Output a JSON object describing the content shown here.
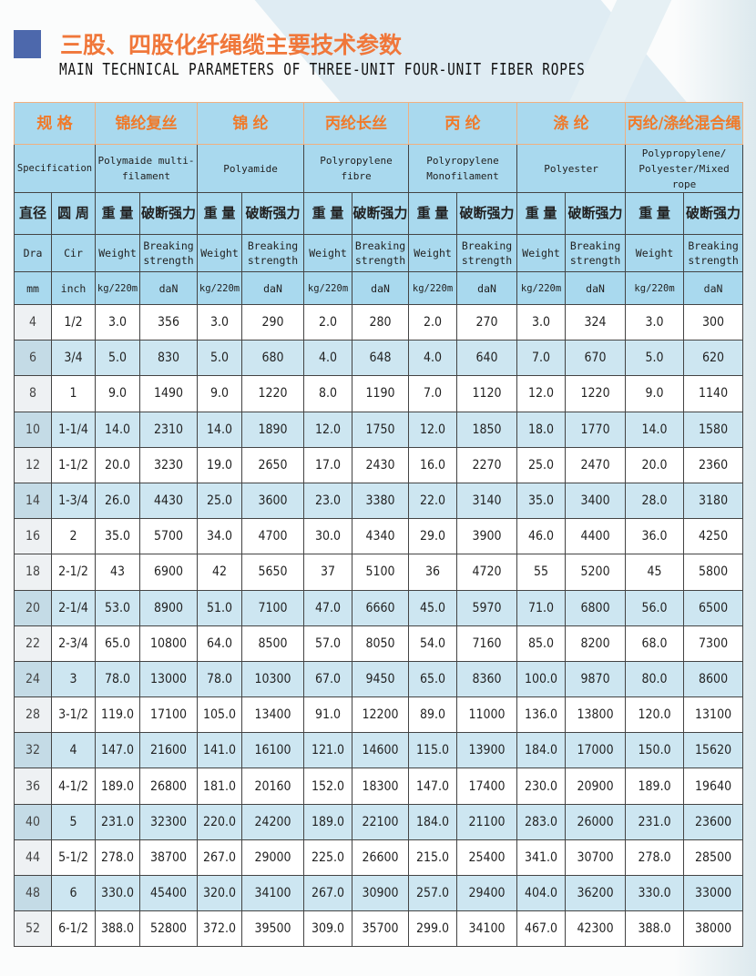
{
  "title_cn": "三股、四股化纤绳缆主要技术参数",
  "title_en": "MAIN TECHNICAL PARAMETERS OF THREE-UNIT FOUR-UNIT FIBER ROPES",
  "header": {
    "spec_cn": "规 格",
    "spec_en": "Specification",
    "materials": [
      {
        "cn": "锦纶复丝",
        "en": "Polymaide multi-filament"
      },
      {
        "cn": "锦 纶",
        "en": "Polyamide"
      },
      {
        "cn": "丙纶长丝",
        "en": "Polyropylene fibre"
      },
      {
        "cn": "丙 纶",
        "en": "Polyropylene Monofilament"
      },
      {
        "cn": "涤 纶",
        "en": "Polyester"
      },
      {
        "cn": "丙纶/涤纶混合绳",
        "en": "Polypropylene/ Polyester/Mixed rope"
      }
    ],
    "dia_cn": "直径",
    "cir_cn": "圆 周",
    "weight_cn": "重 量",
    "break_cn": "破断强力",
    "dia_en": "Dra",
    "cir_en": "Cir",
    "weight_en": "Weight",
    "break_en": "Breaking strength",
    "dia_unit": "mm",
    "cir_unit": "inch",
    "weight_unit": "kg/220m",
    "break_unit": "daN"
  },
  "rows": [
    [
      "4",
      "1/2",
      "3.0",
      "356",
      "3.0",
      "290",
      "2.0",
      "280",
      "2.0",
      "270",
      "3.0",
      "324",
      "3.0",
      "300"
    ],
    [
      "6",
      "3/4",
      "5.0",
      "830",
      "5.0",
      "680",
      "4.0",
      "648",
      "4.0",
      "640",
      "7.0",
      "670",
      "5.0",
      "620"
    ],
    [
      "8",
      "1",
      "9.0",
      "1490",
      "9.0",
      "1220",
      "8.0",
      "1190",
      "7.0",
      "1120",
      "12.0",
      "1220",
      "9.0",
      "1140"
    ],
    [
      "10",
      "1-1/4",
      "14.0",
      "2310",
      "14.0",
      "1890",
      "12.0",
      "1750",
      "12.0",
      "1850",
      "18.0",
      "1770",
      "14.0",
      "1580"
    ],
    [
      "12",
      "1-1/2",
      "20.0",
      "3230",
      "19.0",
      "2650",
      "17.0",
      "2430",
      "16.0",
      "2270",
      "25.0",
      "2470",
      "20.0",
      "2360"
    ],
    [
      "14",
      "1-3/4",
      "26.0",
      "4430",
      "25.0",
      "3600",
      "23.0",
      "3380",
      "22.0",
      "3140",
      "35.0",
      "3400",
      "28.0",
      "3180"
    ],
    [
      "16",
      "2",
      "35.0",
      "5700",
      "34.0",
      "4700",
      "30.0",
      "4340",
      "29.0",
      "3900",
      "46.0",
      "4400",
      "36.0",
      "4250"
    ],
    [
      "18",
      "2-1/2",
      "43",
      "6900",
      "42",
      "5650",
      "37",
      "5100",
      "36",
      "4720",
      "55",
      "5200",
      "45",
      "5800"
    ],
    [
      "20",
      "2-1/4",
      "53.0",
      "8900",
      "51.0",
      "7100",
      "47.0",
      "6660",
      "45.0",
      "5970",
      "71.0",
      "6800",
      "56.0",
      "6500"
    ],
    [
      "22",
      "2-3/4",
      "65.0",
      "10800",
      "64.0",
      "8500",
      "57.0",
      "8050",
      "54.0",
      "7160",
      "85.0",
      "8200",
      "68.0",
      "7300"
    ],
    [
      "24",
      "3",
      "78.0",
      "13000",
      "78.0",
      "10300",
      "67.0",
      "9450",
      "65.0",
      "8360",
      "100.0",
      "9870",
      "80.0",
      "8600"
    ],
    [
      "28",
      "3-1/2",
      "119.0",
      "17100",
      "105.0",
      "13400",
      "91.0",
      "12200",
      "89.0",
      "11000",
      "136.0",
      "13800",
      "120.0",
      "13100"
    ],
    [
      "32",
      "4",
      "147.0",
      "21600",
      "141.0",
      "16100",
      "121.0",
      "14600",
      "115.0",
      "13900",
      "184.0",
      "17000",
      "150.0",
      "15620"
    ],
    [
      "36",
      "4-1/2",
      "189.0",
      "26800",
      "181.0",
      "20160",
      "152.0",
      "18300",
      "147.0",
      "17400",
      "230.0",
      "20900",
      "189.0",
      "19640"
    ],
    [
      "40",
      "5",
      "231.0",
      "32300",
      "220.0",
      "24200",
      "189.0",
      "22100",
      "184.0",
      "21100",
      "283.0",
      "26000",
      "231.0",
      "23600"
    ],
    [
      "44",
      "5-1/2",
      "278.0",
      "38700",
      "267.0",
      "29000",
      "225.0",
      "26600",
      "215.0",
      "25400",
      "341.0",
      "30700",
      "278.0",
      "28500"
    ],
    [
      "48",
      "6",
      "330.0",
      "45400",
      "320.0",
      "34100",
      "267.0",
      "30900",
      "257.0",
      "29400",
      "404.0",
      "36200",
      "330.0",
      "33000"
    ],
    [
      "52",
      "6-1/2",
      "388.0",
      "52800",
      "372.0",
      "39500",
      "309.0",
      "35700",
      "299.0",
      "34100",
      "467.0",
      "42300",
      "388.0",
      "38000"
    ]
  ],
  "colors": {
    "header_bg": "#a9d9ee",
    "header_cn_text": "#f07a2a",
    "row_shade": "#cde6f1",
    "title_square": "#4d68ac",
    "title_cn": "#f0773a"
  }
}
